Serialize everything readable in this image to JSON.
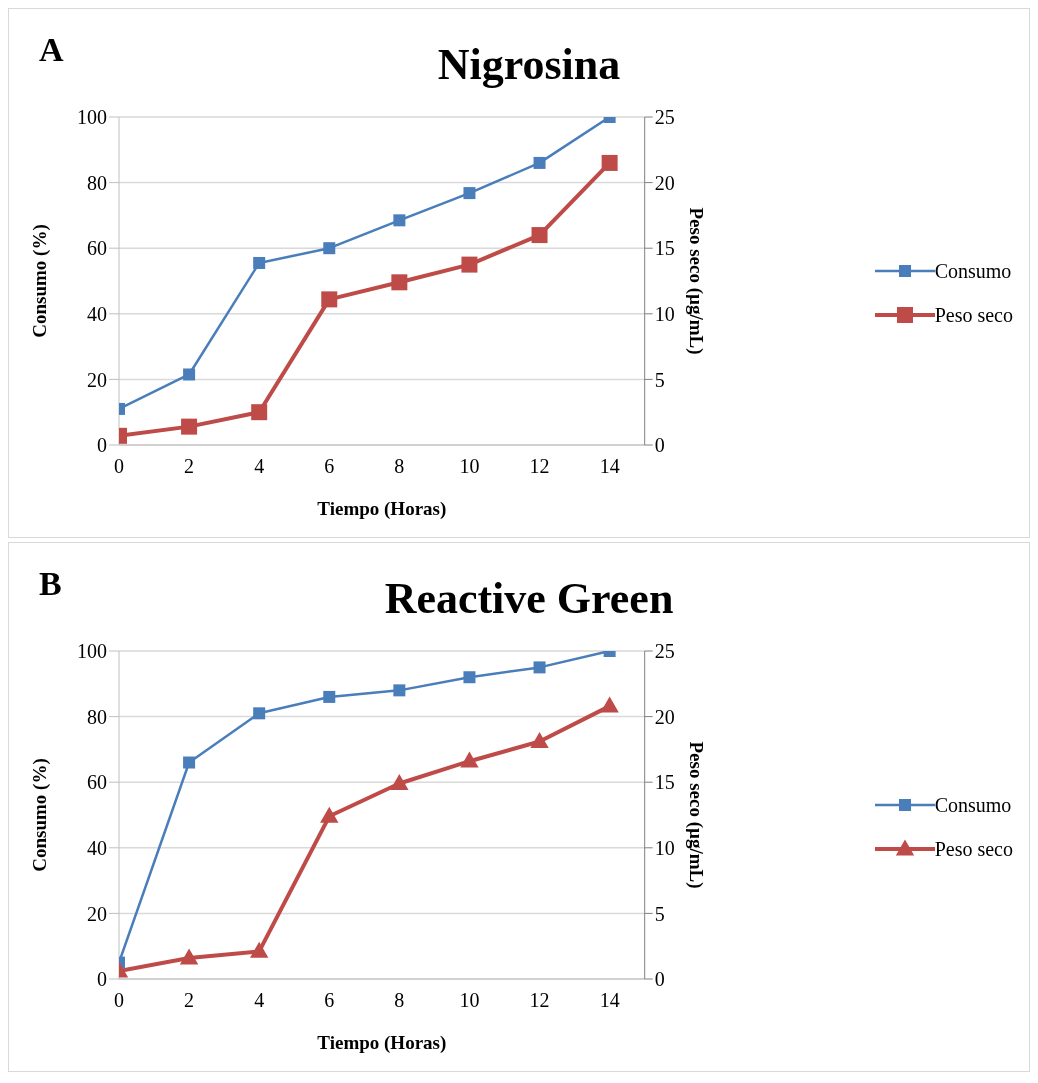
{
  "chart_data": [
    {
      "type": "line",
      "title": "Nigrosina",
      "annotations": [
        "A"
      ],
      "xlabel": "Tiempo (Horas)",
      "ylabel": "Consumo (%)",
      "y2label": "Peso seco (µg/mL)",
      "x": [
        0,
        2,
        4,
        6,
        8,
        10,
        12,
        14
      ],
      "xlim": [
        0,
        15
      ],
      "xticks": [
        0,
        2,
        4,
        6,
        8,
        10,
        12,
        14
      ],
      "ylim": [
        0,
        100
      ],
      "yticks": [
        0,
        20,
        40,
        60,
        80,
        100
      ],
      "y2lim": [
        0,
        25
      ],
      "y2ticks": [
        0,
        5,
        10,
        15,
        20,
        25
      ],
      "grid": "y",
      "legend": "right",
      "line_style": "solid",
      "series": [
        {
          "name": "Consumo",
          "color": "#4a7ebb",
          "marker": "square",
          "values": [
            11,
            21.5,
            55.5,
            60,
            68.5,
            76.8,
            86,
            100
          ]
        },
        {
          "name": "Peso seco",
          "color": "#be4b48",
          "marker": "square",
          "axis": "y2",
          "values": [
            0.7,
            1.4,
            2.5,
            11.1,
            12.4,
            13.75,
            16,
            21.5
          ]
        }
      ]
    },
    {
      "type": "line",
      "title": "Reactive Green",
      "annotations": [
        "B"
      ],
      "xlabel": "Tiempo (Horas)",
      "ylabel": "Consumo (%)",
      "y2label": "Peso seco (µg/mL)",
      "x": [
        0,
        2,
        4,
        6,
        8,
        10,
        12,
        14
      ],
      "xlim": [
        0,
        15
      ],
      "xticks": [
        0,
        2,
        4,
        6,
        8,
        10,
        12,
        14
      ],
      "ylim": [
        0,
        100
      ],
      "yticks": [
        0,
        20,
        40,
        60,
        80,
        100
      ],
      "y2lim": [
        0,
        25
      ],
      "y2ticks": [
        0,
        5,
        10,
        15,
        20,
        25
      ],
      "grid": "y",
      "legend": "right",
      "line_style": "solid",
      "series": [
        {
          "name": "Consumo",
          "color": "#4a7ebb",
          "marker": "square",
          "values": [
            5,
            66,
            81,
            86,
            88,
            92,
            95,
            100
          ]
        },
        {
          "name": "Peso seco",
          "color": "#be4b48",
          "marker": "triangle",
          "axis": "y2",
          "values": [
            0.6,
            1.6,
            2.1,
            12.4,
            14.9,
            16.6,
            18.1,
            20.8
          ]
        }
      ]
    }
  ]
}
